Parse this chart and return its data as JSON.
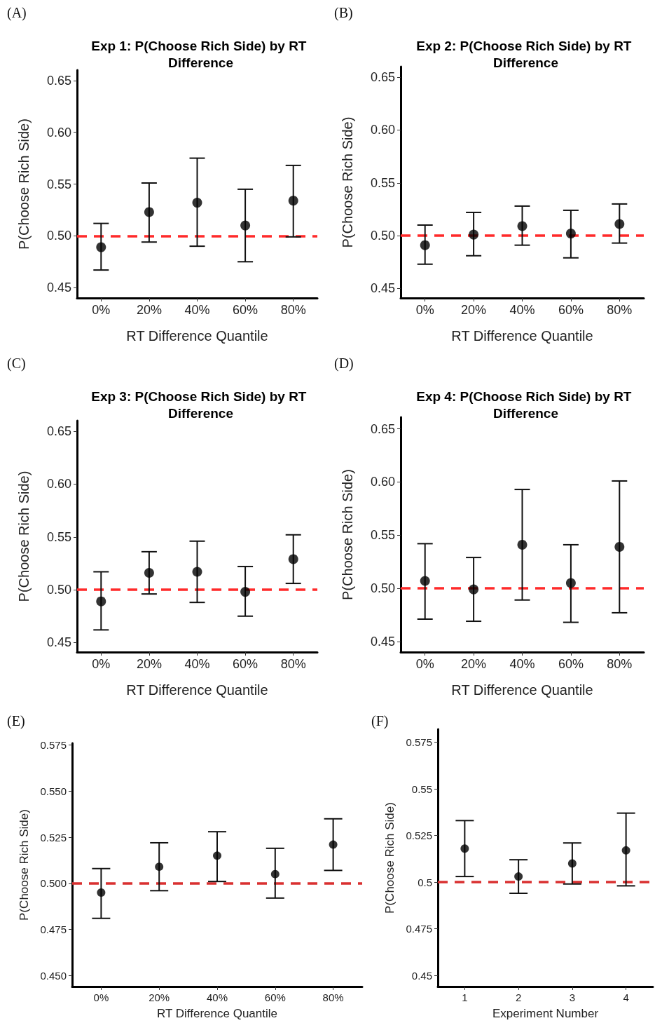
{
  "chart_data": [
    {
      "type": "scatter",
      "title": "Exp 1: P(Choose Rich Side) by RT Difference",
      "xlabel": "RT Difference Quantile",
      "ylabel": "P(Choose Rich Side)",
      "annotations": [
        "(A)"
      ],
      "categories": [
        "0%",
        "20%",
        "40%",
        "60%",
        "80%"
      ],
      "series": [
        {
          "color": "#000000",
          "values": [
            0.489,
            0.523,
            0.532,
            0.51,
            0.534
          ],
          "errors": [
            [
              0.467,
              0.512
            ],
            [
              0.494,
              0.551
            ],
            [
              0.49,
              0.575
            ],
            [
              0.475,
              0.545
            ],
            [
              0.499,
              0.568
            ]
          ]
        }
      ],
      "ylim": [
        0.44,
        0.66
      ],
      "yticks": [
        {
          "value": 0.45,
          "label": "0.45"
        },
        {
          "value": 0.5,
          "label": "0.50"
        },
        {
          "value": 0.55,
          "label": "0.55"
        },
        {
          "value": 0.6,
          "label": "0.60"
        },
        {
          "value": 0.65,
          "label": "0.65"
        }
      ],
      "ref_lines": [
        {
          "axis": "y",
          "value": 0.5,
          "color": "#ff2a2a",
          "line_style": "dashed"
        }
      ],
      "grid": false,
      "marker": "circle"
    },
    {
      "type": "scatter",
      "title": "Exp 2: P(Choose Rich Side) by RT Difference",
      "xlabel": "RT Difference Quantile",
      "ylabel": "P(Choose Rich Side)",
      "annotations": [
        "(B)"
      ],
      "categories": [
        "0%",
        "20%",
        "40%",
        "60%",
        "80%"
      ],
      "series": [
        {
          "color": "#000000",
          "values": [
            0.491,
            0.501,
            0.509,
            0.502,
            0.511
          ],
          "errors": [
            [
              0.473,
              0.51
            ],
            [
              0.481,
              0.522
            ],
            [
              0.491,
              0.528
            ],
            [
              0.479,
              0.524
            ],
            [
              0.493,
              0.53
            ]
          ]
        }
      ],
      "ylim": [
        0.441,
        0.66
      ],
      "yticks": [
        {
          "value": 0.45,
          "label": "0.45"
        },
        {
          "value": 0.5,
          "label": "0.50"
        },
        {
          "value": 0.55,
          "label": "0.55"
        },
        {
          "value": 0.6,
          "label": "0.60"
        },
        {
          "value": 0.65,
          "label": "0.65"
        }
      ],
      "ref_lines": [
        {
          "axis": "y",
          "value": 0.5,
          "color": "#ff2a2a",
          "line_style": "dashed"
        }
      ],
      "grid": false,
      "marker": "circle"
    },
    {
      "type": "scatter",
      "title": "Exp 3: P(Choose Rich Side) by RT Difference",
      "xlabel": "RT Difference Quantile",
      "ylabel": "P(Choose Rich Side)",
      "annotations": [
        "(C)"
      ],
      "categories": [
        "0%",
        "20%",
        "40%",
        "60%",
        "80%"
      ],
      "series": [
        {
          "color": "#000000",
          "values": [
            0.489,
            0.516,
            0.517,
            0.498,
            0.529
          ],
          "errors": [
            [
              0.462,
              0.517
            ],
            [
              0.496,
              0.536
            ],
            [
              0.488,
              0.546
            ],
            [
              0.475,
              0.522
            ],
            [
              0.506,
              0.552
            ]
          ]
        }
      ],
      "ylim": [
        0.441,
        0.66
      ],
      "yticks": [
        {
          "value": 0.45,
          "label": "0.45"
        },
        {
          "value": 0.5,
          "label": "0.50"
        },
        {
          "value": 0.55,
          "label": "0.55"
        },
        {
          "value": 0.6,
          "label": "0.60"
        },
        {
          "value": 0.65,
          "label": "0.65"
        }
      ],
      "ref_lines": [
        {
          "axis": "y",
          "value": 0.5,
          "color": "#ff2a2a",
          "line_style": "dashed"
        }
      ],
      "grid": false,
      "marker": "circle"
    },
    {
      "type": "scatter",
      "title": "Exp 4: P(Choose Rich Side) by RT Difference",
      "xlabel": "RT Difference Quantile",
      "ylabel": "P(Choose Rich Side)",
      "annotations": [
        "(D)"
      ],
      "categories": [
        "0%",
        "20%",
        "40%",
        "60%",
        "80%"
      ],
      "series": [
        {
          "color": "#000000",
          "values": [
            0.507,
            0.499,
            0.541,
            0.505,
            0.539
          ],
          "errors": [
            [
              0.471,
              0.542
            ],
            [
              0.469,
              0.529
            ],
            [
              0.489,
              0.593
            ],
            [
              0.468,
              0.541
            ],
            [
              0.477,
              0.601
            ]
          ]
        }
      ],
      "ylim": [
        0.44,
        0.661
      ],
      "yticks": [
        {
          "value": 0.45,
          "label": "0.45"
        },
        {
          "value": 0.5,
          "label": "0.50"
        },
        {
          "value": 0.55,
          "label": "0.55"
        },
        {
          "value": 0.6,
          "label": "0.60"
        },
        {
          "value": 0.65,
          "label": "0.65"
        }
      ],
      "ref_lines": [
        {
          "axis": "y",
          "value": 0.5,
          "color": "#ff2a2a",
          "line_style": "dashed"
        }
      ],
      "grid": false,
      "marker": "circle"
    },
    {
      "type": "scatter",
      "xlabel": "RT Difference Quantile",
      "ylabel": "P(Choose Rich Side)",
      "annotations": [
        "(E)"
      ],
      "categories": [
        "0%",
        "20%",
        "40%",
        "60%",
        "80%"
      ],
      "series": [
        {
          "color": "#000000",
          "values": [
            0.495,
            0.509,
            0.515,
            0.505,
            0.521
          ],
          "errors": [
            [
              0.481,
              0.508
            ],
            [
              0.496,
              0.522
            ],
            [
              0.501,
              0.528
            ],
            [
              0.492,
              0.519
            ],
            [
              0.507,
              0.535
            ]
          ]
        }
      ],
      "ylim": [
        0.444,
        0.576
      ],
      "yticks": [
        {
          "value": 0.45,
          "label": "0.450"
        },
        {
          "value": 0.475,
          "label": "0.475"
        },
        {
          "value": 0.5,
          "label": "0.500"
        },
        {
          "value": 0.525,
          "label": "0.525"
        },
        {
          "value": 0.55,
          "label": "0.550"
        },
        {
          "value": 0.575,
          "label": "0.575"
        }
      ],
      "ref_lines": [
        {
          "axis": "y",
          "value": 0.5,
          "color": "#d93030",
          "line_style": "dashed"
        }
      ],
      "grid": false,
      "marker": "circle"
    },
    {
      "type": "scatter",
      "xlabel": "Experiment Number",
      "ylabel": "P(Choose Rich Side)",
      "annotations": [
        "(F)"
      ],
      "categories": [
        "1",
        "2",
        "3",
        "4"
      ],
      "series": [
        {
          "color": "#000000",
          "values": [
            0.518,
            0.503,
            0.51,
            0.517
          ],
          "errors": [
            [
              0.503,
              0.533
            ],
            [
              0.494,
              0.512
            ],
            [
              0.499,
              0.521
            ],
            [
              0.498,
              0.537
            ]
          ]
        }
      ],
      "ylim": [
        0.444,
        0.582
      ],
      "yticks": [
        0.45,
        0.475,
        0.5,
        0.525,
        0.55,
        0.575
      ],
      "ref_lines": [
        {
          "axis": "y",
          "value": 0.5,
          "color": "#d93030",
          "line_style": "dashed"
        }
      ],
      "grid": false,
      "marker": "circle"
    }
  ]
}
